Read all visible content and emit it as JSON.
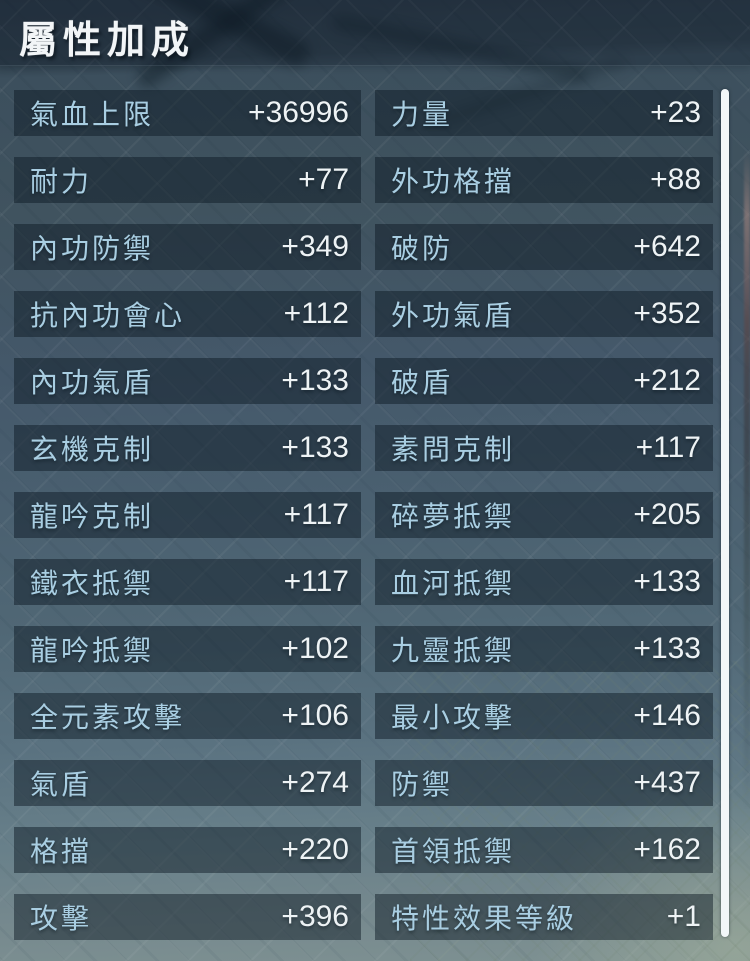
{
  "panel": {
    "title": "屬性加成"
  },
  "colors": {
    "title_color": "#f2f5f7",
    "label_color": "#a9cee2",
    "value_color": "#eef3f5",
    "row_bg": "rgba(12,26,36,0.48)",
    "scrollbar_color": "#f2f7f8",
    "background_top": "#2b3a48",
    "background_bottom": "#7e9192"
  },
  "stats": {
    "left": [
      {
        "label": "氣血上限",
        "value": "+36996"
      },
      {
        "label": "耐力",
        "value": "+77"
      },
      {
        "label": "內功防禦",
        "value": "+349"
      },
      {
        "label": "抗內功會心",
        "value": "+112"
      },
      {
        "label": "內功氣盾",
        "value": "+133"
      },
      {
        "label": "玄機克制",
        "value": "+133"
      },
      {
        "label": "龍吟克制",
        "value": "+117"
      },
      {
        "label": "鐵衣抵禦",
        "value": "+117"
      },
      {
        "label": "龍吟抵禦",
        "value": "+102"
      },
      {
        "label": "全元素攻擊",
        "value": "+106"
      },
      {
        "label": "氣盾",
        "value": "+274"
      },
      {
        "label": "格擋",
        "value": "+220"
      },
      {
        "label": "攻擊",
        "value": "+396"
      }
    ],
    "right": [
      {
        "label": "力量",
        "value": "+23"
      },
      {
        "label": "外功格擋",
        "value": "+88"
      },
      {
        "label": "破防",
        "value": "+642"
      },
      {
        "label": "外功氣盾",
        "value": "+352"
      },
      {
        "label": "破盾",
        "value": "+212"
      },
      {
        "label": "素問克制",
        "value": "+117"
      },
      {
        "label": "碎夢抵禦",
        "value": "+205"
      },
      {
        "label": "血河抵禦",
        "value": "+133"
      },
      {
        "label": "九靈抵禦",
        "value": "+133"
      },
      {
        "label": "最小攻擊",
        "value": "+146"
      },
      {
        "label": "防禦",
        "value": "+437"
      },
      {
        "label": "首領抵禦",
        "value": "+162"
      },
      {
        "label": "特性效果等級",
        "value": "+1"
      }
    ]
  }
}
